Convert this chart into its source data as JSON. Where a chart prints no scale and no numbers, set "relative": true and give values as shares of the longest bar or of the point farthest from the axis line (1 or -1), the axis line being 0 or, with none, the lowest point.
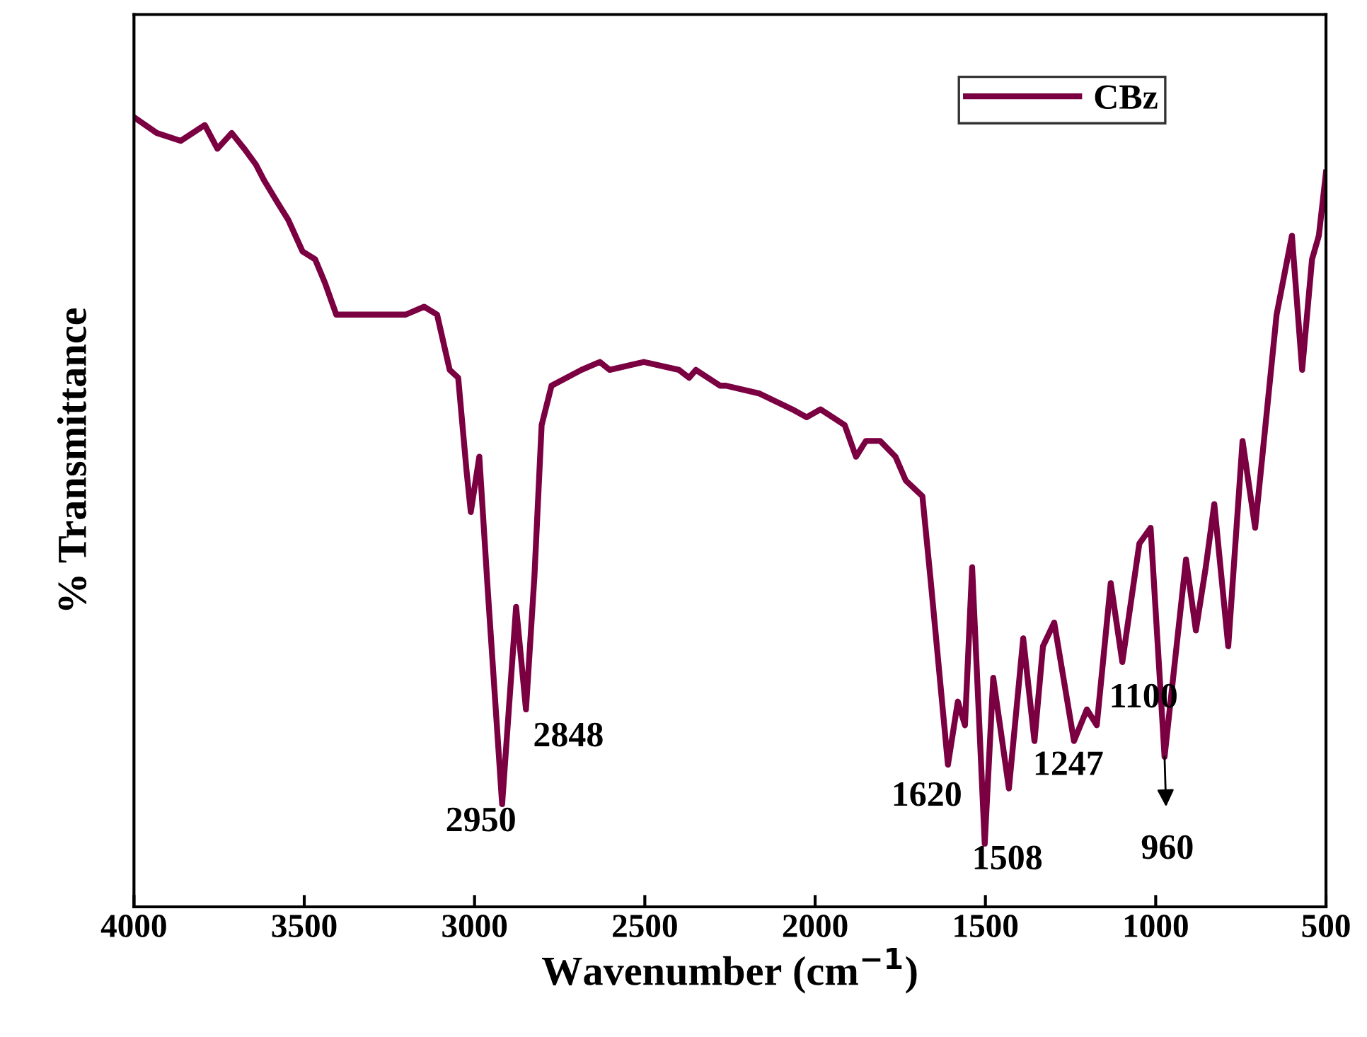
{
  "chart_data": {
    "type": "line",
    "xlabel": "Wavenumber (cm$^{−1}$)",
    "ylabel": "% Transmittance",
    "relative": true,
    "xlim": [
      4000,
      500
    ],
    "xticks": [
      4000,
      3500,
      3000,
      2500,
      2000,
      1500,
      1000,
      500
    ],
    "legend": "top right",
    "grid": false,
    "marker": "none",
    "line_style": "solid",
    "series": [
      {
        "name": "CBz",
        "color": "#7b0041",
        "x": [
          4000,
          3933,
          3863,
          3792,
          3755,
          3713,
          3676,
          3642,
          3618,
          3576,
          3547,
          3505,
          3468,
          3439,
          3406,
          3306,
          3202,
          3148,
          3110,
          3073,
          3048,
          3023,
          3011,
          2986,
          2961,
          2919,
          2878,
          2849,
          2824,
          2803,
          2774,
          2686,
          2632,
          2603,
          2503,
          2400,
          2370,
          2350,
          2279,
          2262,
          2163,
          2067,
          2025,
          1984,
          1913,
          1880,
          1851,
          1809,
          1764,
          1734,
          1685,
          1660,
          1610,
          1581,
          1560,
          1539,
          1502,
          1477,
          1431,
          1389,
          1356,
          1331,
          1298,
          1240,
          1202,
          1173,
          1132,
          1098,
          1048,
          1015,
          974,
          911,
          882,
          853,
          828,
          787,
          745,
          708,
          645,
          600,
          570,
          541,
          521,
          500
        ],
        "values": [
          1.0,
          0.98,
          0.97,
          0.99,
          0.96,
          0.98,
          0.96,
          0.94,
          0.92,
          0.89,
          0.87,
          0.83,
          0.82,
          0.79,
          0.75,
          0.75,
          0.75,
          0.76,
          0.75,
          0.68,
          0.67,
          0.55,
          0.5,
          0.57,
          0.4,
          0.13,
          0.38,
          0.25,
          0.42,
          0.61,
          0.66,
          0.68,
          0.69,
          0.68,
          0.69,
          0.68,
          0.67,
          0.68,
          0.66,
          0.66,
          0.65,
          0.63,
          0.62,
          0.63,
          0.61,
          0.57,
          0.59,
          0.59,
          0.57,
          0.54,
          0.52,
          0.41,
          0.18,
          0.26,
          0.23,
          0.43,
          0.08,
          0.29,
          0.15,
          0.34,
          0.21,
          0.33,
          0.36,
          0.21,
          0.25,
          0.23,
          0.41,
          0.31,
          0.46,
          0.48,
          0.19,
          0.44,
          0.35,
          0.43,
          0.51,
          0.33,
          0.59,
          0.48,
          0.75,
          0.85,
          0.68,
          0.82,
          0.85,
          0.93
        ]
      }
    ],
    "annotations": [
      {
        "text": "2950",
        "x": 2919,
        "y": 0.13
      },
      {
        "text": "2848",
        "x": 2849,
        "y": 0.25
      },
      {
        "text": "1620",
        "x": 1610,
        "y": 0.18
      },
      {
        "text": "1508",
        "x": 1502,
        "y": 0.08
      },
      {
        "text": "1247",
        "x": 1240,
        "y": 0.21
      },
      {
        "text": "1100",
        "x": 1098,
        "y": 0.31
      },
      {
        "text": "960",
        "x": 974,
        "y": 0.19
      }
    ]
  }
}
